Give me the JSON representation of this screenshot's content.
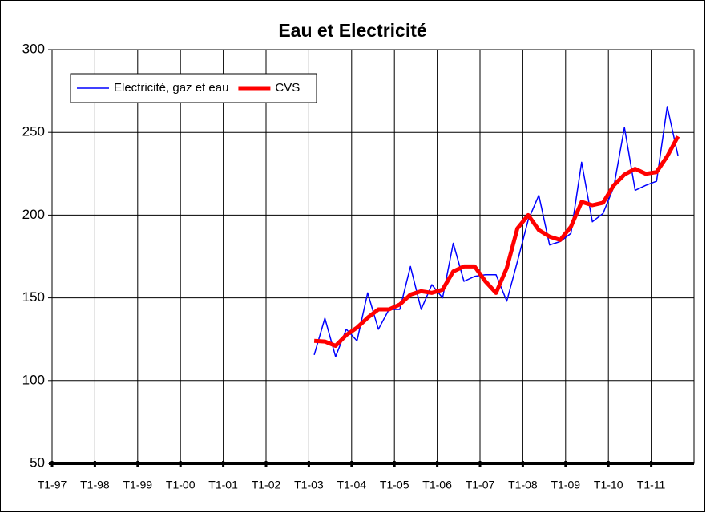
{
  "chart_data": {
    "type": "line",
    "title": "Eau et Electricité",
    "categories": [
      "T1-97",
      null,
      null,
      null,
      "T1-98",
      null,
      null,
      null,
      "T1-99",
      null,
      null,
      null,
      "T1-00",
      null,
      null,
      null,
      "T1-01",
      null,
      null,
      null,
      "T1-02",
      null,
      null,
      null,
      "T1-03",
      null,
      null,
      null,
      "T1-04",
      null,
      null,
      null,
      "T1-05",
      null,
      null,
      null,
      "T1-06",
      null,
      null,
      null,
      "T1-07",
      null,
      null,
      null,
      "T1-08",
      null,
      null,
      null,
      "T1-09",
      null,
      null,
      null,
      "T1-10",
      null,
      null,
      null,
      "T1-11",
      null,
      null,
      null
    ],
    "series": [
      {
        "name": "Electricité, gaz et eau",
        "color": "#0000ff",
        "width": 1.5,
        "values": [
          null,
          null,
          null,
          null,
          null,
          null,
          null,
          null,
          null,
          null,
          null,
          null,
          null,
          null,
          null,
          null,
          null,
          null,
          null,
          null,
          null,
          null,
          null,
          null,
          115.5,
          137.7,
          114.4,
          131,
          124,
          153,
          131,
          143,
          143,
          169,
          143,
          158,
          150,
          183,
          160,
          163,
          164,
          164,
          148,
          172,
          197,
          212,
          182,
          184,
          189,
          232,
          196,
          201,
          217,
          253,
          215,
          218,
          220.5,
          265.6,
          236,
          null
        ]
      },
      {
        "name": "CVS",
        "color": "#ff0000",
        "width": 5,
        "values": [
          null,
          null,
          null,
          null,
          null,
          null,
          null,
          null,
          null,
          null,
          null,
          null,
          null,
          null,
          null,
          null,
          null,
          null,
          null,
          null,
          null,
          null,
          null,
          null,
          124,
          123.6,
          121,
          127.5,
          132,
          138,
          143,
          143,
          146,
          152,
          154,
          153,
          155,
          166,
          169,
          169,
          160,
          153,
          168,
          192,
          200,
          191,
          187,
          185,
          193,
          208,
          206,
          207.5,
          218,
          224.5,
          228,
          225,
          226,
          235.6,
          247.6,
          null
        ]
      }
    ],
    "ylim": [
      50,
      300
    ],
    "yticks": [
      50,
      100,
      150,
      200,
      250,
      300
    ],
    "grid": true,
    "legend": "top-left"
  }
}
